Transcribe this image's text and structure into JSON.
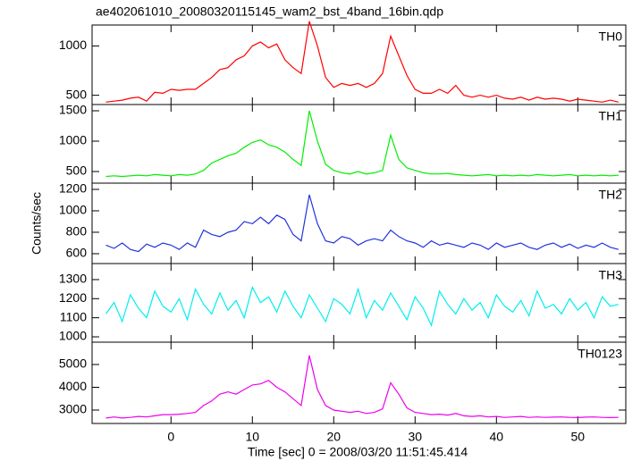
{
  "chart_data": [
    {
      "type": "line",
      "title": "ae402061010_20080320115145_wam2_bst_4band_16bin.qdp",
      "label": "TH0",
      "color": "#ff0000",
      "x": [
        -8,
        -7,
        -6,
        -5,
        -4,
        -3,
        -2,
        -1,
        0,
        1,
        2,
        3,
        4,
        5,
        6,
        7,
        8,
        9,
        10,
        11,
        12,
        13,
        14,
        15,
        16,
        17,
        18,
        19,
        20,
        21,
        22,
        23,
        24,
        25,
        26,
        27,
        28,
        29,
        30,
        31,
        32,
        33,
        34,
        35,
        36,
        37,
        38,
        39,
        40,
        41,
        42,
        43,
        44,
        45,
        46,
        47,
        48,
        49,
        50,
        51,
        52,
        53,
        54,
        55
      ],
      "values": [
        430,
        440,
        450,
        470,
        480,
        440,
        530,
        520,
        560,
        550,
        560,
        560,
        620,
        680,
        760,
        780,
        860,
        900,
        1000,
        1040,
        980,
        1020,
        860,
        780,
        720,
        1250,
        1000,
        680,
        580,
        620,
        600,
        620,
        580,
        620,
        720,
        1100,
        900,
        700,
        560,
        520,
        520,
        560,
        520,
        600,
        500,
        480,
        500,
        480,
        500,
        470,
        460,
        480,
        450,
        480,
        460,
        470,
        460,
        440,
        460,
        450,
        440,
        430,
        450,
        430
      ],
      "xlim": [
        -9.7,
        55.9
      ],
      "ylim": [
        406,
        1212
      ],
      "yticks": [
        500,
        1000
      ]
    },
    {
      "type": "line",
      "label": "TH1",
      "color": "#00ee00",
      "x": [
        -8,
        -7,
        -6,
        -5,
        -4,
        -3,
        -2,
        -1,
        0,
        1,
        2,
        3,
        4,
        5,
        6,
        7,
        8,
        9,
        10,
        11,
        12,
        13,
        14,
        15,
        16,
        17,
        18,
        19,
        20,
        21,
        22,
        23,
        24,
        25,
        26,
        27,
        28,
        29,
        30,
        31,
        32,
        33,
        34,
        35,
        36,
        37,
        38,
        39,
        40,
        41,
        42,
        43,
        44,
        45,
        46,
        47,
        48,
        49,
        50,
        51,
        52,
        53,
        54,
        55
      ],
      "values": [
        420,
        430,
        420,
        430,
        440,
        430,
        450,
        440,
        430,
        450,
        440,
        460,
        520,
        640,
        700,
        760,
        800,
        900,
        980,
        1020,
        940,
        900,
        820,
        700,
        600,
        1500,
        1000,
        620,
        520,
        480,
        460,
        500,
        460,
        480,
        520,
        1100,
        700,
        560,
        520,
        480,
        460,
        460,
        470,
        450,
        440,
        430,
        440,
        450,
        430,
        440,
        430,
        440,
        430,
        450,
        440,
        430,
        440,
        450,
        430,
        440,
        430,
        440,
        430,
        440
      ],
      "xlim": [
        -9.7,
        55.9
      ],
      "ylim": [
        309,
        1603
      ],
      "yticks": [
        500,
        1000,
        1500
      ]
    },
    {
      "type": "line",
      "label": "TH2",
      "color": "#2233dd",
      "ylabel": "Counts/sec",
      "x": [
        -8,
        -7,
        -6,
        -5,
        -4,
        -3,
        -2,
        -1,
        0,
        1,
        2,
        3,
        4,
        5,
        6,
        7,
        8,
        9,
        10,
        11,
        12,
        13,
        14,
        15,
        16,
        17,
        18,
        19,
        20,
        21,
        22,
        23,
        24,
        25,
        26,
        27,
        28,
        29,
        30,
        31,
        32,
        33,
        34,
        35,
        36,
        37,
        38,
        39,
        40,
        41,
        42,
        43,
        44,
        45,
        46,
        47,
        48,
        49,
        50,
        51,
        52,
        53,
        54,
        55
      ],
      "values": [
        680,
        650,
        700,
        640,
        620,
        690,
        660,
        700,
        680,
        640,
        700,
        660,
        820,
        780,
        760,
        800,
        820,
        900,
        880,
        940,
        880,
        960,
        920,
        780,
        720,
        1150,
        880,
        720,
        700,
        760,
        740,
        680,
        720,
        740,
        720,
        820,
        760,
        720,
        700,
        660,
        720,
        680,
        700,
        680,
        660,
        700,
        680,
        640,
        700,
        660,
        680,
        700,
        660,
        640,
        680,
        700,
        660,
        690,
        650,
        680,
        660,
        700,
        660,
        640
      ],
      "xlim": [
        -9.7,
        55.9
      ],
      "ylim": [
        508,
        1258
      ],
      "yticks": [
        600,
        800,
        1000,
        1200
      ]
    },
    {
      "type": "line",
      "label": "TH3",
      "color": "#00eeee",
      "x": [
        -8,
        -7,
        -6,
        -5,
        -4,
        -3,
        -2,
        -1,
        0,
        1,
        2,
        3,
        4,
        5,
        6,
        7,
        8,
        9,
        10,
        11,
        12,
        13,
        14,
        15,
        16,
        17,
        18,
        19,
        20,
        21,
        22,
        23,
        24,
        25,
        26,
        27,
        28,
        29,
        30,
        31,
        32,
        33,
        34,
        35,
        36,
        37,
        38,
        39,
        40,
        41,
        42,
        43,
        44,
        45,
        46,
        47,
        48,
        49,
        50,
        51,
        52,
        53,
        54,
        55
      ],
      "values": [
        1120,
        1180,
        1080,
        1220,
        1150,
        1100,
        1240,
        1160,
        1130,
        1200,
        1090,
        1250,
        1170,
        1120,
        1230,
        1140,
        1190,
        1100,
        1260,
        1180,
        1210,
        1130,
        1240,
        1160,
        1100,
        1220,
        1150,
        1080,
        1200,
        1170,
        1120,
        1250,
        1100,
        1190,
        1140,
        1230,
        1160,
        1090,
        1210,
        1150,
        1060,
        1240,
        1170,
        1120,
        1200,
        1140,
        1180,
        1100,
        1220,
        1160,
        1130,
        1190,
        1110,
        1240,
        1150,
        1170,
        1120,
        1200,
        1140,
        1180,
        1100,
        1210,
        1160,
        1170
      ],
      "xlim": [
        -9.7,
        55.9
      ],
      "ylim": [
        972,
        1384
      ],
      "yticks": [
        1000,
        1100,
        1200,
        1300
      ]
    },
    {
      "type": "line",
      "label": "TH0123",
      "color": "#ee00ee",
      "xlabel": "Time [sec] 0 = 2008/03/20 11:51:45.414",
      "x": [
        -8,
        -7,
        -6,
        -5,
        -4,
        -3,
        -2,
        -1,
        0,
        1,
        2,
        3,
        4,
        5,
        6,
        7,
        8,
        9,
        10,
        11,
        12,
        13,
        14,
        15,
        16,
        17,
        18,
        19,
        20,
        21,
        22,
        23,
        24,
        25,
        26,
        27,
        28,
        29,
        30,
        31,
        32,
        33,
        34,
        35,
        36,
        37,
        38,
        39,
        40,
        41,
        42,
        43,
        44,
        45,
        46,
        47,
        48,
        49,
        50,
        51,
        52,
        53,
        54,
        55
      ],
      "values": [
        2650,
        2700,
        2650,
        2680,
        2720,
        2700,
        2750,
        2800,
        2800,
        2820,
        2850,
        2900,
        3200,
        3400,
        3700,
        3800,
        3700,
        3900,
        4100,
        4150,
        4300,
        4000,
        3800,
        3500,
        3200,
        5400,
        3900,
        3200,
        3000,
        2950,
        2900,
        2950,
        2850,
        2900,
        3050,
        4200,
        3700,
        3100,
        2900,
        2850,
        2800,
        2820,
        2780,
        2850,
        2750,
        2720,
        2750,
        2700,
        2720,
        2680,
        2700,
        2720,
        2680,
        2700,
        2680,
        2690,
        2700,
        2680,
        2670,
        2690,
        2700,
        2680,
        2670,
        2680
      ],
      "xlim": [
        -9.7,
        55.9
      ],
      "ylim": [
        2412,
        5980
      ],
      "yticks": [
        3000,
        4000,
        5000
      ],
      "xticks": [
        0,
        10,
        20,
        30,
        40,
        50
      ]
    }
  ]
}
